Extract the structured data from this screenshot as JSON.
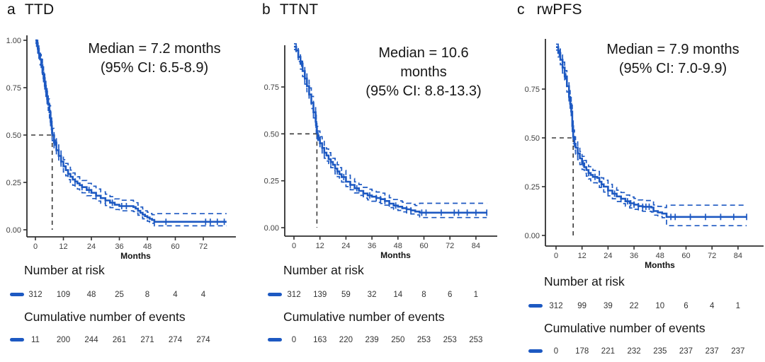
{
  "colors": {
    "curve": "#1d59c2",
    "ref_line": "#3a3a3a",
    "axis": "#2f2f2f"
  },
  "figure": {
    "panels": [
      {
        "label": "a",
        "title": "TTD",
        "annotation_lines": [
          "Median = 7.2 months",
          "(95% CI: 6.5-8.9)"
        ],
        "xlabel": "Months",
        "risk_heading": "Number at risk",
        "events_heading": "Cumulative number of events",
        "risk_values": [
          "312",
          "109",
          "48",
          "25",
          "8",
          "4",
          "4"
        ],
        "event_values": [
          "11",
          "200",
          "244",
          "261",
          "271",
          "274",
          "274"
        ]
      },
      {
        "label": "b",
        "title": "TTNT",
        "annotation_lines": [
          "Median = 10.6",
          "months",
          "(95% CI: 8.8-13.3)"
        ],
        "xlabel": "Months",
        "risk_heading": "Number at risk",
        "events_heading": "Cumulative number of events",
        "risk_values": [
          "312",
          "139",
          "59",
          "32",
          "14",
          "8",
          "6",
          "1"
        ],
        "event_values": [
          "0",
          "163",
          "220",
          "239",
          "250",
          "253",
          "253",
          "253"
        ]
      },
      {
        "label": "c",
        "title": "rwPFS",
        "annotation_lines": [
          "Median = 7.9 months",
          "(95% CI: 7.0-9.9)"
        ],
        "xlabel": "Months",
        "risk_heading": "Number at risk",
        "events_heading": "Cumulative number of events",
        "risk_values": [
          "312",
          "99",
          "39",
          "22",
          "10",
          "6",
          "4",
          "1"
        ],
        "event_values": [
          "0",
          "178",
          "221",
          "232",
          "235",
          "237",
          "237",
          "237"
        ]
      }
    ]
  },
  "chart_data": [
    {
      "type": "line",
      "subtype": "kaplan-meier-step",
      "title": "TTD",
      "xlabel": "Months",
      "ylabel": "",
      "median_months": 7.2,
      "ci_95": "6.5-8.9",
      "xticks": [
        0,
        12,
        24,
        36,
        48,
        60,
        72
      ],
      "yticks": [
        0,
        0.25,
        0.5,
        0.75,
        1
      ],
      "xlim": [
        0,
        86
      ],
      "ylim": [
        0,
        1
      ],
      "legend_position": "none",
      "grid": false,
      "points": [
        [
          0,
          1.0,
          0.985,
          1.0
        ],
        [
          0.5,
          0.985,
          0.968,
          1.0
        ],
        [
          1,
          0.955,
          0.933,
          0.975
        ],
        [
          1.5,
          0.93,
          0.905,
          0.95
        ],
        [
          2,
          0.9,
          0.87,
          0.925
        ],
        [
          2.5,
          0.87,
          0.84,
          0.9
        ],
        [
          3,
          0.83,
          0.8,
          0.86
        ],
        [
          3.5,
          0.8,
          0.77,
          0.83
        ],
        [
          4,
          0.76,
          0.73,
          0.79
        ],
        [
          4.5,
          0.73,
          0.7,
          0.76
        ],
        [
          5,
          0.69,
          0.66,
          0.72
        ],
        [
          5.5,
          0.66,
          0.63,
          0.69
        ],
        [
          6,
          0.62,
          0.59,
          0.655
        ],
        [
          6.5,
          0.57,
          0.54,
          0.6
        ],
        [
          7,
          0.53,
          0.5,
          0.565
        ],
        [
          7.2,
          0.5,
          0.47,
          0.535
        ],
        [
          8,
          0.46,
          0.43,
          0.495
        ],
        [
          9,
          0.42,
          0.39,
          0.455
        ],
        [
          10,
          0.39,
          0.36,
          0.425
        ],
        [
          11,
          0.36,
          0.33,
          0.395
        ],
        [
          12,
          0.335,
          0.305,
          0.37
        ],
        [
          13,
          0.315,
          0.285,
          0.35
        ],
        [
          14,
          0.295,
          0.265,
          0.33
        ],
        [
          15,
          0.28,
          0.25,
          0.315
        ],
        [
          16,
          0.265,
          0.235,
          0.3
        ],
        [
          17,
          0.255,
          0.225,
          0.29
        ],
        [
          18,
          0.245,
          0.215,
          0.28
        ],
        [
          19,
          0.235,
          0.205,
          0.27
        ],
        [
          20,
          0.225,
          0.195,
          0.26
        ],
        [
          22,
          0.21,
          0.18,
          0.245
        ],
        [
          24,
          0.195,
          0.165,
          0.23
        ],
        [
          26,
          0.18,
          0.152,
          0.215
        ],
        [
          28,
          0.167,
          0.14,
          0.2
        ],
        [
          30,
          0.155,
          0.128,
          0.188
        ],
        [
          32,
          0.143,
          0.117,
          0.175
        ],
        [
          34,
          0.132,
          0.107,
          0.163
        ],
        [
          36,
          0.125,
          0.1,
          0.156
        ],
        [
          42,
          0.12,
          0.096,
          0.151
        ],
        [
          43,
          0.112,
          0.088,
          0.143
        ],
        [
          44,
          0.1,
          0.077,
          0.13
        ],
        [
          45,
          0.09,
          0.068,
          0.12
        ],
        [
          46,
          0.08,
          0.058,
          0.11
        ],
        [
          47,
          0.072,
          0.051,
          0.1
        ],
        [
          48,
          0.065,
          0.045,
          0.093
        ],
        [
          49,
          0.058,
          0.039,
          0.086
        ],
        [
          50,
          0.052,
          0.034,
          0.08
        ],
        [
          51,
          0.042,
          0.021,
          0.085
        ],
        [
          82,
          0.042,
          0.021,
          0.085
        ]
      ],
      "censor_times": [
        1.5,
        2.5,
        3.5,
        5,
        6.5,
        8.5,
        11,
        14,
        17,
        20,
        23,
        26,
        30,
        33,
        37,
        39,
        56,
        73,
        75,
        78,
        81
      ]
    },
    {
      "type": "line",
      "subtype": "kaplan-meier-step",
      "title": "TTNT",
      "xlabel": "Months",
      "ylabel": "",
      "median_months": 10.6,
      "ci_95": "8.8-13.3",
      "xticks": [
        0,
        12,
        24,
        36,
        48,
        60,
        72,
        84
      ],
      "yticks": [
        0,
        0.25,
        0.5,
        0.75
      ],
      "xlim": [
        0,
        94
      ],
      "ylim": [
        0,
        0.97
      ],
      "legend_position": "none",
      "grid": false,
      "points": [
        [
          0,
          0.965,
          0.95,
          0.98
        ],
        [
          1,
          0.945,
          0.925,
          0.965
        ],
        [
          2,
          0.91,
          0.885,
          0.935
        ],
        [
          3,
          0.875,
          0.845,
          0.9
        ],
        [
          4,
          0.835,
          0.805,
          0.865
        ],
        [
          5,
          0.795,
          0.765,
          0.825
        ],
        [
          6,
          0.755,
          0.725,
          0.79
        ],
        [
          7,
          0.71,
          0.68,
          0.745
        ],
        [
          8,
          0.665,
          0.635,
          0.7
        ],
        [
          9,
          0.615,
          0.585,
          0.65
        ],
        [
          10,
          0.565,
          0.535,
          0.6
        ],
        [
          10.3,
          0.535,
          0.505,
          0.57
        ],
        [
          10.6,
          0.505,
          0.475,
          0.54
        ],
        [
          11,
          0.48,
          0.45,
          0.515
        ],
        [
          12,
          0.45,
          0.42,
          0.485
        ],
        [
          13,
          0.425,
          0.395,
          0.46
        ],
        [
          14,
          0.4,
          0.37,
          0.435
        ],
        [
          15,
          0.385,
          0.355,
          0.42
        ],
        [
          16,
          0.365,
          0.335,
          0.4
        ],
        [
          17,
          0.35,
          0.32,
          0.385
        ],
        [
          18,
          0.335,
          0.305,
          0.37
        ],
        [
          19,
          0.315,
          0.287,
          0.35
        ],
        [
          20,
          0.3,
          0.272,
          0.335
        ],
        [
          21,
          0.285,
          0.257,
          0.32
        ],
        [
          22,
          0.27,
          0.243,
          0.305
        ],
        [
          24,
          0.245,
          0.219,
          0.28
        ],
        [
          26,
          0.228,
          0.202,
          0.262
        ],
        [
          28,
          0.21,
          0.185,
          0.244
        ],
        [
          30,
          0.196,
          0.172,
          0.23
        ],
        [
          32,
          0.182,
          0.158,
          0.215
        ],
        [
          34,
          0.172,
          0.148,
          0.205
        ],
        [
          36,
          0.165,
          0.141,
          0.198
        ],
        [
          38,
          0.158,
          0.135,
          0.19
        ],
        [
          40,
          0.152,
          0.129,
          0.184
        ],
        [
          42,
          0.142,
          0.12,
          0.174
        ],
        [
          44,
          0.128,
          0.107,
          0.16
        ],
        [
          46,
          0.118,
          0.097,
          0.15
        ],
        [
          48,
          0.112,
          0.092,
          0.143
        ],
        [
          50,
          0.104,
          0.084,
          0.136
        ],
        [
          52,
          0.098,
          0.079,
          0.13
        ],
        [
          54,
          0.092,
          0.073,
          0.124
        ],
        [
          56,
          0.086,
          0.068,
          0.118
        ],
        [
          58,
          0.08,
          0.054,
          0.13
        ],
        [
          89,
          0.08,
          0.054,
          0.13
        ]
      ],
      "censor_times": [
        2,
        3.5,
        5,
        7,
        9,
        11.5,
        14,
        17,
        20,
        23,
        26,
        29,
        32,
        35,
        38,
        40,
        42,
        44,
        47,
        52,
        54,
        59,
        61,
        68,
        74,
        76,
        80,
        84,
        89
      ]
    },
    {
      "type": "line",
      "subtype": "kaplan-meier-step",
      "title": "rwPFS",
      "xlabel": "Months",
      "ylabel": "",
      "median_months": 7.9,
      "ci_95": "7.0-9.9",
      "xticks": [
        0,
        12,
        24,
        36,
        48,
        60,
        72,
        84
      ],
      "yticks": [
        0,
        0.25,
        0.5,
        0.75
      ],
      "xlim": [
        0,
        94
      ],
      "ylim": [
        0,
        0.99
      ],
      "legend_position": "none",
      "grid": false,
      "points": [
        [
          0,
          0.965,
          0.95,
          0.98
        ],
        [
          1,
          0.935,
          0.915,
          0.955
        ],
        [
          2,
          0.9,
          0.875,
          0.925
        ],
        [
          3,
          0.86,
          0.832,
          0.888
        ],
        [
          4,
          0.815,
          0.785,
          0.845
        ],
        [
          5,
          0.765,
          0.735,
          0.795
        ],
        [
          6,
          0.71,
          0.678,
          0.742
        ],
        [
          6.5,
          0.675,
          0.643,
          0.707
        ],
        [
          7,
          0.635,
          0.6,
          0.668
        ],
        [
          7.5,
          0.56,
          0.527,
          0.594
        ],
        [
          7.9,
          0.505,
          0.472,
          0.54
        ],
        [
          8.5,
          0.47,
          0.437,
          0.505
        ],
        [
          9,
          0.45,
          0.417,
          0.485
        ],
        [
          10,
          0.42,
          0.388,
          0.455
        ],
        [
          11,
          0.395,
          0.363,
          0.43
        ],
        [
          12,
          0.37,
          0.338,
          0.405
        ],
        [
          13,
          0.35,
          0.318,
          0.384
        ],
        [
          14,
          0.335,
          0.304,
          0.368
        ],
        [
          15,
          0.32,
          0.29,
          0.353
        ],
        [
          16,
          0.31,
          0.28,
          0.343
        ],
        [
          17,
          0.3,
          0.27,
          0.333
        ],
        [
          19,
          0.295,
          0.265,
          0.328
        ],
        [
          20,
          0.275,
          0.246,
          0.308
        ],
        [
          21,
          0.262,
          0.234,
          0.295
        ],
        [
          22,
          0.25,
          0.222,
          0.283
        ],
        [
          24,
          0.23,
          0.203,
          0.262
        ],
        [
          26,
          0.214,
          0.188,
          0.246
        ],
        [
          28,
          0.2,
          0.174,
          0.232
        ],
        [
          30,
          0.188,
          0.163,
          0.22
        ],
        [
          32,
          0.175,
          0.15,
          0.207
        ],
        [
          34,
          0.165,
          0.141,
          0.197
        ],
        [
          36,
          0.158,
          0.134,
          0.19
        ],
        [
          38,
          0.15,
          0.127,
          0.182
        ],
        [
          40,
          0.147,
          0.124,
          0.179
        ],
        [
          44,
          0.143,
          0.12,
          0.175
        ],
        [
          45,
          0.125,
          0.104,
          0.156
        ],
        [
          47,
          0.118,
          0.097,
          0.149
        ],
        [
          49,
          0.112,
          0.091,
          0.143
        ],
        [
          51,
          0.095,
          0.05,
          0.155
        ],
        [
          88,
          0.095,
          0.05,
          0.155
        ]
      ],
      "censor_times": [
        1.5,
        3,
        4.5,
        6,
        8,
        10,
        12.5,
        15,
        18,
        21,
        24,
        27,
        30,
        33,
        34.5,
        36,
        38,
        40,
        41.5,
        43,
        53,
        55,
        62,
        69,
        76,
        82,
        88
      ]
    }
  ]
}
